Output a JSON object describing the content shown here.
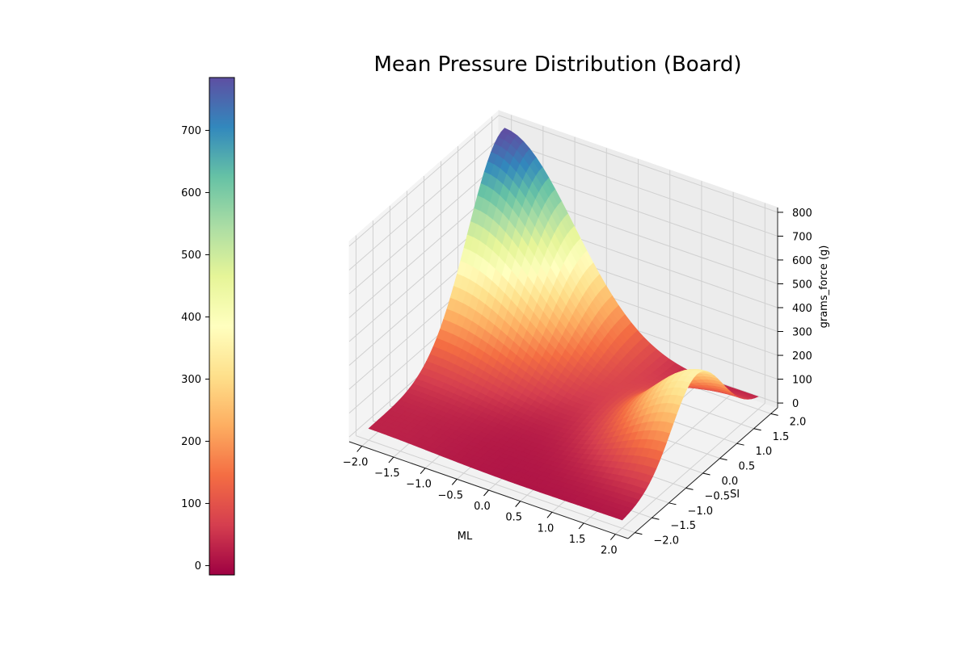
{
  "chart_data": {
    "type": "surface3d",
    "title": "Mean Pressure Distribution (Board)",
    "xlabel": "ML",
    "ylabel": "SI",
    "zlabel": "grams_force (g)",
    "colormap": "Spectral",
    "x_ticks": [
      "−2.0",
      "−1.5",
      "−1.0",
      "−0.5",
      "0.0",
      "0.5",
      "1.0",
      "1.5",
      "2.0"
    ],
    "y_ticks": [
      "−2.0",
      "−1.5",
      "−1.0",
      "−0.5",
      "0.0",
      "0.5",
      "1.0",
      "1.5",
      "2.0"
    ],
    "z_ticks": [
      "0",
      "100",
      "200",
      "300",
      "400",
      "500",
      "600",
      "700",
      "800"
    ],
    "xlim": [
      -2.2,
      2.2
    ],
    "ylim": [
      -2.2,
      2.2
    ],
    "zlim": [
      -20,
      820
    ],
    "colorbar": {
      "ticks": [
        "0",
        "100",
        "200",
        "300",
        "400",
        "500",
        "600",
        "700"
      ],
      "range": [
        -15,
        785
      ]
    },
    "grid": true,
    "surface_samples": {
      "description_points": [
        {
          "x": -2.0,
          "y": 2.0,
          "z": 780
        },
        {
          "x": 2.0,
          "y": -2.0,
          "z": 5
        },
        {
          "x": -2.0,
          "y": -2.0,
          "z": 30
        },
        {
          "x": 2.0,
          "y": 0.2,
          "z": 320
        },
        {
          "x": 2.0,
          "y": 2.0,
          "z": 40
        }
      ]
    }
  }
}
